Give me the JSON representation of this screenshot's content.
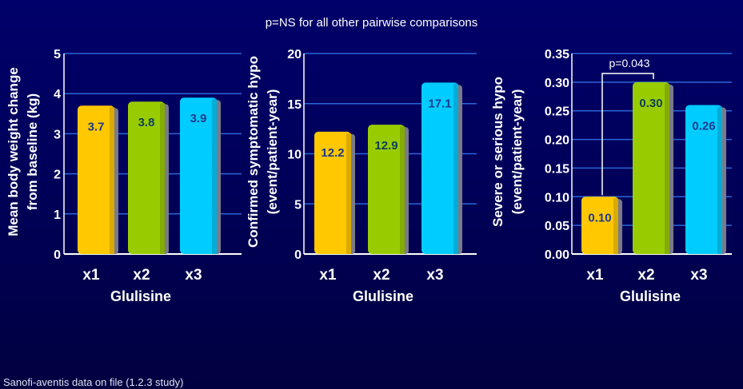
{
  "header_note": "p=NS for all other pairwise comparisons",
  "footer_note": "Sanofi-aventis data on file (1.2.3 study)",
  "colors": {
    "gold": "#ffc800",
    "green": "#99cc00",
    "cyan": "#00ccff",
    "gridline": "#2a66d6"
  },
  "chart_data": [
    {
      "type": "bar",
      "title": "",
      "xlabel": "Glulisine",
      "ylabel": [
        "Mean body weight change",
        "from baseline (kg)"
      ],
      "categories": [
        "x1",
        "x2",
        "x3"
      ],
      "values": [
        3.7,
        3.8,
        3.9
      ],
      "value_labels": [
        "3.7",
        "3.8",
        "3.9"
      ],
      "label_colors": [
        "#1f3a8a",
        "#0f3f5a",
        "#1f3a8a"
      ],
      "ylim": [
        0,
        5
      ],
      "yticks": [
        "0",
        "1",
        "2",
        "3",
        "4",
        "5"
      ],
      "grid": true
    },
    {
      "type": "bar",
      "title": "",
      "xlabel": "Glulisine",
      "ylabel": [
        "Confirmed symptomatic hypo",
        "(event/patient-year)"
      ],
      "categories": [
        "x1",
        "x2",
        "x3"
      ],
      "values": [
        12.2,
        12.9,
        17.1
      ],
      "value_labels": [
        "12.2",
        "12.9",
        "17.1"
      ],
      "label_colors": [
        "#1f3a8a",
        "#0f3f5a",
        "#1f3a8a"
      ],
      "ylim": [
        0,
        20
      ],
      "yticks": [
        "0",
        "5",
        "10",
        "15",
        "20"
      ],
      "grid": true
    },
    {
      "type": "bar",
      "title": "",
      "xlabel": "Glulisine",
      "ylabel": [
        "Severe or serious hypo",
        "(event/patient-year)"
      ],
      "categories": [
        "x1",
        "x2",
        "x3"
      ],
      "values": [
        0.1,
        0.3,
        0.26
      ],
      "value_labels": [
        "0.10",
        "0.30",
        "0.26"
      ],
      "label_colors": [
        "#1f3a8a",
        "#0f3f5a",
        "#1f3a8a"
      ],
      "ylim": [
        0,
        0.35
      ],
      "yticks": [
        "0.00",
        "0.05",
        "0.10",
        "0.15",
        "0.20",
        "0.25",
        "0.30",
        "0.35"
      ],
      "grid": true,
      "annotation": {
        "text": "p=0.043",
        "between": [
          "x1",
          "x2"
        ]
      }
    }
  ]
}
